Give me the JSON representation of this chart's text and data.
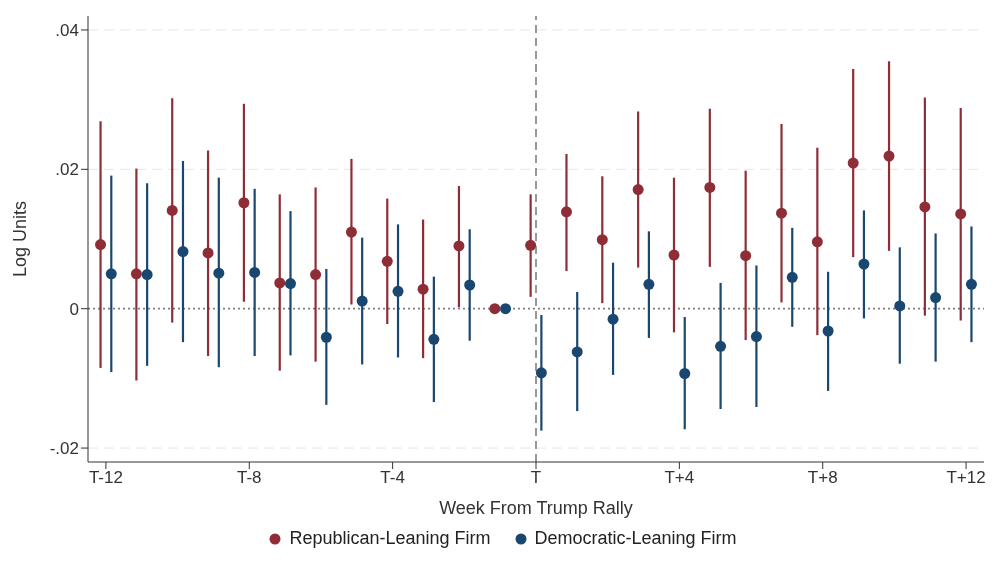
{
  "chart_data": {
    "type": "scatter",
    "xlabel": "Week From Trump Rally",
    "ylabel": "Log Units",
    "categories": [
      "T-12",
      null,
      null,
      null,
      "T-8",
      null,
      null,
      null,
      "T-4",
      null,
      null,
      null,
      "T",
      null,
      null,
      null,
      "T+4",
      null,
      null,
      null,
      "T+8",
      null,
      null,
      null,
      "T+12"
    ],
    "ylim": [
      -0.022,
      0.042
    ],
    "yticks": [
      {
        "value": -0.02,
        "label": "-.02"
      },
      0,
      {
        "value": 0.02,
        "label": ".02"
      },
      {
        "value": 0.04,
        "label": ".04"
      }
    ],
    "grid": "y",
    "legend": "bottom",
    "marker": "circle",
    "ref_lines": [
      {
        "axis": "x",
        "value": "T",
        "color": "#7f7f7f",
        "line_style": "dashed"
      },
      {
        "axis": "y",
        "value": 0,
        "color": "#7f7f7f",
        "line_style": "dotted"
      }
    ],
    "series": [
      {
        "name": "Republican-Leaning Firm",
        "color": "#8f2d37",
        "values": [
          0.0092,
          0.005,
          0.0141,
          0.008,
          0.0152,
          0.0037,
          0.0049,
          0.011,
          0.0068,
          0.0028,
          0.009,
          0,
          0.0091,
          0.0139,
          0.0099,
          0.0171,
          0.0077,
          0.0174,
          0.0076,
          0.0137,
          0.0096,
          0.0209,
          0.0219,
          0.0146,
          0.0136
        ],
        "errors": [
          [
            -0.0085,
            0.0269
          ],
          [
            -0.0103,
            0.0201
          ],
          [
            -0.002,
            0.0302
          ],
          [
            -0.0068,
            0.0227
          ],
          [
            0.001,
            0.0294
          ],
          [
            -0.0089,
            0.0164
          ],
          [
            -0.0076,
            0.0174
          ],
          [
            0.0006,
            0.0215
          ],
          [
            -0.0022,
            0.0158
          ],
          [
            -0.0071,
            0.0128
          ],
          [
            0.0002,
            0.0176
          ],
          null,
          [
            0.0017,
            0.0164
          ],
          [
            0.0054,
            0.0222
          ],
          [
            0.0008,
            0.019
          ],
          [
            0.0059,
            0.0283
          ],
          [
            -0.0034,
            0.0188
          ],
          [
            0.006,
            0.0287
          ],
          [
            -0.0045,
            0.0198
          ],
          [
            0.0009,
            0.0265
          ],
          [
            -0.0038,
            0.0231
          ],
          [
            0.0074,
            0.0344
          ],
          [
            0.0083,
            0.0355
          ],
          [
            -0.001,
            0.0303
          ],
          [
            -0.0017,
            0.0288
          ]
        ]
      },
      {
        "name": "Democratic-Leaning Firm",
        "color": "#1a476f",
        "values": [
          0.005,
          0.0049,
          0.0082,
          0.0051,
          0.0052,
          0.0036,
          -0.0041,
          0.0011,
          0.0025,
          -0.0044,
          0.0034,
          0,
          -0.0092,
          -0.0062,
          -0.0015,
          0.0035,
          -0.0093,
          -0.0054,
          -0.004,
          0.0045,
          -0.0032,
          0.0064,
          0.0004,
          0.0016,
          0.0035
        ],
        "errors": [
          [
            -0.0091,
            0.0191
          ],
          [
            -0.0082,
            0.018
          ],
          [
            -0.0048,
            0.0212
          ],
          [
            -0.0084,
            0.0188
          ],
          [
            -0.0068,
            0.0172
          ],
          [
            -0.0067,
            0.014
          ],
          [
            -0.0138,
            0.0057
          ],
          [
            -0.008,
            0.0102
          ],
          [
            -0.007,
            0.0121
          ],
          [
            -0.0134,
            0.0046
          ],
          [
            -0.0046,
            0.0114
          ],
          null,
          [
            -0.0175,
            -0.0009
          ],
          [
            -0.0147,
            0.0024
          ],
          [
            -0.0095,
            0.0066
          ],
          [
            -0.0042,
            0.0111
          ],
          [
            -0.0173,
            -0.0012
          ],
          [
            -0.0144,
            0.0037
          ],
          [
            -0.0141,
            0.0062
          ],
          [
            -0.0026,
            0.0116
          ],
          [
            -0.0118,
            0.0053
          ],
          [
            -0.0014,
            0.0141
          ],
          [
            -0.0079,
            0.0088
          ],
          [
            -0.0076,
            0.0108
          ],
          [
            -0.0048,
            0.0118
          ]
        ]
      }
    ]
  }
}
